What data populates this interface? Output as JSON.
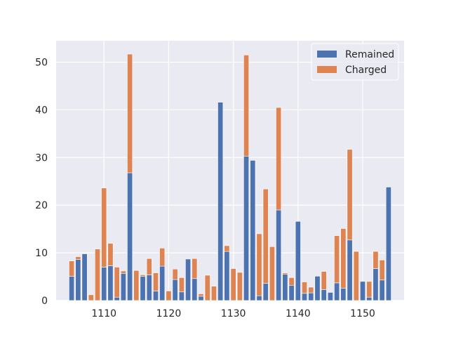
{
  "chart_data": {
    "type": "bar",
    "stacked": true,
    "x": [
      1105,
      1106,
      1107,
      1108,
      1109,
      1110,
      1111,
      1112,
      1113,
      1114,
      1115,
      1116,
      1117,
      1118,
      1119,
      1120,
      1121,
      1122,
      1123,
      1124,
      1125,
      1126,
      1127,
      1128,
      1129,
      1130,
      1131,
      1132,
      1133,
      1134,
      1135,
      1136,
      1137,
      1138,
      1139,
      1140,
      1141,
      1142,
      1143,
      1144,
      1145,
      1146,
      1147,
      1148,
      1149,
      1150,
      1151,
      1152,
      1153,
      1154
    ],
    "series": [
      {
        "name": "Remained",
        "color": "#4c72b0",
        "values": [
          5.1,
          8.6,
          9.8,
          0,
          0,
          7,
          7.3,
          0.7,
          5.7,
          26.8,
          0,
          5.1,
          5.4,
          2,
          7.2,
          0,
          4.4,
          1.8,
          8.7,
          4.6,
          0.9,
          0,
          0,
          41.6,
          10.3,
          0,
          0,
          30.3,
          29.4,
          1,
          3.6,
          0,
          19,
          5.5,
          3.2,
          16.6,
          1.5,
          1.6,
          5.1,
          2.3,
          1.7,
          3.7,
          2.6,
          12.7,
          0,
          4,
          0.7,
          6.7,
          4.3,
          23.8
        ]
      },
      {
        "name": "Charged",
        "color": "#dd8452",
        "values": [
          3.2,
          0.6,
          0,
          1.2,
          10.8,
          16.6,
          4.7,
          6.3,
          0.5,
          24.9,
          6.3,
          0.3,
          3.4,
          3.8,
          3.8,
          2,
          2.2,
          3,
          0,
          4.2,
          0.5,
          5.3,
          3,
          0,
          1.2,
          6.7,
          5.9,
          21.2,
          0,
          13,
          19.8,
          11.3,
          21.5,
          0.3,
          1.6,
          0,
          2.4,
          1.2,
          0,
          3.8,
          0,
          9.9,
          12.5,
          19,
          10.3,
          0,
          3.3,
          3.6,
          4.2,
          0
        ]
      }
    ],
    "xticks": [
      "1110",
      "1120",
      "1130",
      "1140",
      "1150"
    ],
    "yticks": [
      "0",
      "10",
      "20",
      "30",
      "40",
      "50"
    ],
    "xlim": [
      1102.6,
      1156.4
    ],
    "ylim": [
      0,
      54.5
    ],
    "grid": true,
    "legend": {
      "placement": "top-right",
      "entries": [
        "Remained",
        "Charged"
      ]
    },
    "title": "",
    "xlabel": "",
    "ylabel": ""
  }
}
